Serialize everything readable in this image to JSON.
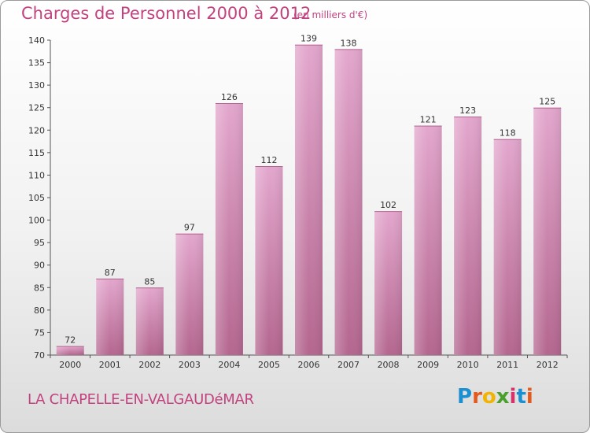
{
  "header": {
    "title": "Charges de Personnel 2000 à 2012",
    "subtitle": "(en milliers d'€)"
  },
  "footer": {
    "commune": "LA CHAPELLE-EN-VALGAUDéMAR",
    "logo_letters": [
      "P",
      "r",
      "o",
      "x",
      "i",
      "t",
      "i"
    ],
    "logo_colors": [
      "#1a8fd1",
      "#e35a1c",
      "#f1b400",
      "#4aa02c",
      "#d6336c",
      "#1a8fd1",
      "#e35a1c"
    ]
  },
  "colors": {
    "bar_light": "#e3a6cd",
    "bar_dark": "#b4668f",
    "accent": "#c2427f"
  },
  "chart_data": {
    "type": "bar",
    "categories": [
      "2000",
      "2001",
      "2002",
      "2003",
      "2004",
      "2005",
      "2006",
      "2007",
      "2008",
      "2009",
      "2010",
      "2011",
      "2012"
    ],
    "values": [
      72,
      87,
      85,
      97,
      126,
      112,
      139,
      138,
      102,
      121,
      123,
      118,
      125
    ],
    "title": "Charges de Personnel 2000 à 2012",
    "subtitle": "(en milliers d'€)",
    "xlabel": "",
    "ylabel": "",
    "ylim": [
      70,
      140
    ],
    "yticks": [
      70,
      75,
      80,
      85,
      90,
      95,
      100,
      105,
      110,
      115,
      120,
      125,
      130,
      135,
      140
    ],
    "grid": false,
    "legend": "none"
  }
}
